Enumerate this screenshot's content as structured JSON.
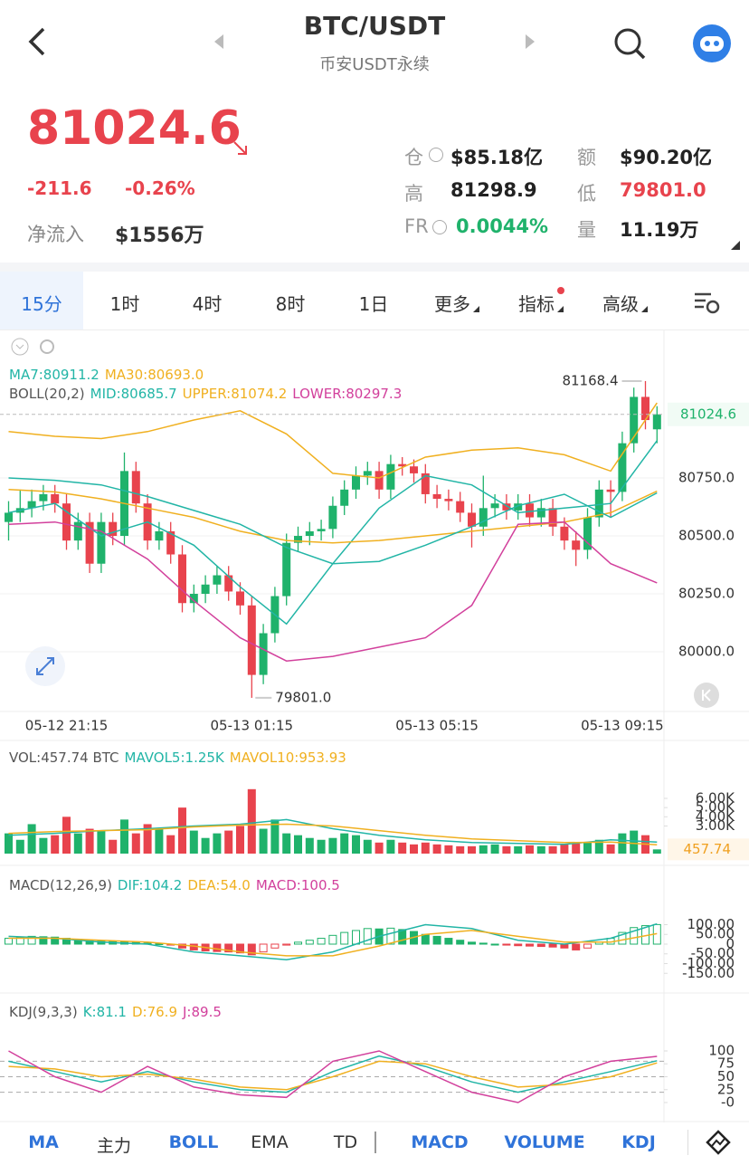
{
  "header": {
    "title": "BTC/USDT",
    "subtitle": "币安USDT永续"
  },
  "ticker": {
    "price": "81024.6",
    "change": "-211.6",
    "change_pct": "-0.26%",
    "net_inflow_label": "净流入",
    "net_inflow": "$1556万",
    "stats": [
      {
        "label": "仓",
        "value": "$85.18亿",
        "info": true,
        "color": "#222"
      },
      {
        "label": "额",
        "value": "$90.20亿",
        "info": false,
        "color": "#222"
      },
      {
        "label": "高",
        "value": "81298.9",
        "info": false,
        "color": "#222"
      },
      {
        "label": "低",
        "value": "79801.0",
        "info": false,
        "color": "#e8434d"
      },
      {
        "label": "FR",
        "value": "0.0044%",
        "info": true,
        "color": "#1fb26b"
      },
      {
        "label": "量",
        "value": "11.19万",
        "info": false,
        "color": "#222"
      }
    ]
  },
  "tabs": [
    {
      "label": "15分",
      "active": true
    },
    {
      "label": "1时",
      "active": false
    },
    {
      "label": "4时",
      "active": false
    },
    {
      "label": "8时",
      "active": false
    },
    {
      "label": "1日",
      "active": false
    },
    {
      "label": "更多",
      "active": false,
      "dropdown": true
    },
    {
      "label": "指标",
      "active": false,
      "dropdown": true,
      "badge": true
    },
    {
      "label": "高级",
      "active": false,
      "dropdown": true
    }
  ],
  "chart": {
    "up_color": "#1fb26b",
    "down_color": "#e8434d",
    "time_labels": {
      "x": [
        5,
        21,
        37,
        53
      ],
      "labels": [
        "05-12 21:15",
        "05-13 01:15",
        "05-13 05:15",
        "05-13 09:15"
      ]
    },
    "price": {
      "type": "candlestick",
      "ylim": [
        79746,
        81387
      ],
      "yticks": [
        {
          "value": 80000,
          "label": "80000.0"
        },
        {
          "value": 80250,
          "label": "80250.0"
        },
        {
          "value": 80500,
          "label": "80500.0"
        },
        {
          "value": 80750,
          "label": "80750.0"
        }
      ],
      "candles": [
        [
          80560,
          80650,
          80480,
          80600
        ],
        [
          80600,
          80700,
          80560,
          80620
        ],
        [
          80620,
          80700,
          80580,
          80650
        ],
        [
          80650,
          80720,
          80610,
          80680
        ],
        [
          80680,
          80720,
          80600,
          80640
        ],
        [
          80640,
          80680,
          80440,
          80480
        ],
        [
          80480,
          80600,
          80440,
          80560
        ],
        [
          80560,
          80600,
          80340,
          80380
        ],
        [
          80380,
          80600,
          80340,
          80560
        ],
        [
          80560,
          80600,
          80460,
          80500
        ],
        [
          80500,
          80860,
          80460,
          80780
        ],
        [
          80780,
          80820,
          80600,
          80640
        ],
        [
          80640,
          80680,
          80440,
          80480
        ],
        [
          80480,
          80560,
          80440,
          80520
        ],
        [
          80520,
          80560,
          80380,
          80420
        ],
        [
          80420,
          80460,
          80170,
          80210
        ],
        [
          80210,
          80290,
          80170,
          80250
        ],
        [
          80250,
          80330,
          80210,
          80290
        ],
        [
          80290,
          80370,
          80250,
          80330
        ],
        [
          80330,
          80370,
          80220,
          80260
        ],
        [
          80260,
          80300,
          80160,
          80200
        ],
        [
          80200,
          80240,
          79801,
          79900
        ],
        [
          79900,
          80120,
          79860,
          80080
        ],
        [
          80080,
          80280,
          80040,
          80240
        ],
        [
          80240,
          80510,
          80200,
          80470
        ],
        [
          80470,
          80540,
          80430,
          80500
        ],
        [
          80500,
          80560,
          80460,
          80520
        ],
        [
          80520,
          80570,
          80480,
          80530
        ],
        [
          80530,
          80670,
          80490,
          80630
        ],
        [
          80630,
          80740,
          80590,
          80700
        ],
        [
          80700,
          80800,
          80660,
          80760
        ],
        [
          80760,
          80820,
          80720,
          80780
        ],
        [
          80780,
          80820,
          80660,
          80700
        ],
        [
          80700,
          80850,
          80660,
          80810
        ],
        [
          80810,
          80840,
          80760,
          80800
        ],
        [
          80800,
          80830,
          80730,
          80770
        ],
        [
          80770,
          80810,
          80640,
          80680
        ],
        [
          80680,
          80720,
          80620,
          80660
        ],
        [
          80660,
          80700,
          80610,
          80650
        ],
        [
          80650,
          80690,
          80560,
          80600
        ],
        [
          80600,
          80640,
          80450,
          80540
        ],
        [
          80540,
          80760,
          80500,
          80620
        ],
        [
          80620,
          80680,
          80580,
          80640
        ],
        [
          80640,
          80680,
          80570,
          80610
        ],
        [
          80610,
          80680,
          80570,
          80640
        ],
        [
          80640,
          80680,
          80540,
          80580
        ],
        [
          80580,
          80660,
          80540,
          80620
        ],
        [
          80620,
          80660,
          80500,
          80540
        ],
        [
          80540,
          80580,
          80440,
          80480
        ],
        [
          80480,
          80520,
          80370,
          80440
        ],
        [
          80440,
          80620,
          80400,
          80580
        ],
        [
          80580,
          80740,
          80540,
          80700
        ],
        [
          80700,
          80740,
          80580,
          80690
        ],
        [
          80690,
          80950,
          80650,
          80900
        ],
        [
          80900,
          81140,
          80860,
          81100
        ],
        [
          81100,
          81168.4,
          80960,
          81000
        ],
        [
          80960,
          81060,
          80900,
          81024.6
        ]
      ],
      "line_x": [
        0,
        4,
        8,
        12,
        16,
        20,
        24,
        28,
        32,
        36,
        40,
        44,
        48,
        52,
        56
      ],
      "lines": [
        {
          "name": "MA7",
          "color": "#22b5a6",
          "values": [
            80600,
            80640,
            80500,
            80560,
            80460,
            80280,
            80120,
            80380,
            80620,
            80760,
            80720,
            80600,
            80620,
            80640,
            80911.2
          ]
        },
        {
          "name": "MA30",
          "color": "#f0b020",
          "values": [
            80700,
            80690,
            80660,
            80620,
            80580,
            80520,
            80480,
            80470,
            80480,
            80500,
            80520,
            80540,
            80560,
            80600,
            80693
          ]
        },
        {
          "name": "MID",
          "color": "#22b5a6",
          "values": [
            80750,
            80740,
            80720,
            80670,
            80610,
            80550,
            80450,
            80380,
            80390,
            80460,
            80540,
            80630,
            80680,
            80580,
            80685.7
          ]
        },
        {
          "name": "UPPER",
          "color": "#f0b020",
          "values": [
            80950,
            80930,
            80920,
            80950,
            81000,
            81040,
            80940,
            80770,
            80750,
            80840,
            80870,
            80880,
            80850,
            80780,
            81074.2
          ]
        },
        {
          "name": "LOWER",
          "color": "#d2409c",
          "values": [
            80550,
            80560,
            80520,
            80400,
            80220,
            80060,
            79960,
            79980,
            80020,
            80060,
            80200,
            80550,
            80560,
            80380,
            80297.3
          ]
        }
      ],
      "legend": [
        [
          {
            "text": "MA7:80911.2",
            "color": "#22b5a6"
          },
          {
            "text": "MA30:80693.0",
            "color": "#f0b020"
          }
        ],
        [
          {
            "text": "BOLL(20,2)",
            "color": "#555"
          },
          {
            "text": "MID:80685.7",
            "color": "#22b5a6"
          },
          {
            "text": "UPPER:81074.2",
            "color": "#f0b020"
          },
          {
            "text": "LOWER:80297.3",
            "color": "#d2409c"
          }
        ]
      ],
      "last_price": {
        "value": 81024.6,
        "label": "81024.6"
      },
      "max": {
        "x": 55,
        "value": 81168.4,
        "label": "81168.4"
      },
      "min": {
        "x": 21,
        "value": 79801,
        "label": "79801.0"
      }
    },
    "volume": {
      "type": "bar",
      "ylim": [
        0,
        10620
      ],
      "yticks": [
        {
          "value": 3000,
          "label": "3.00K"
        },
        {
          "value": 4000,
          "label": "4.00K"
        },
        {
          "value": 5000,
          "label": "5.00K"
        },
        {
          "value": 6000,
          "label": "6.00K"
        }
      ],
      "values": [
        2200,
        1500,
        3200,
        1700,
        2000,
        4000,
        2200,
        2700,
        2500,
        1500,
        3700,
        2200,
        3200,
        2700,
        2000,
        5000,
        2500,
        1700,
        2200,
        2500,
        3000,
        7000,
        2700,
        3700,
        2200,
        2000,
        1700,
        1500,
        1700,
        2200,
        2000,
        1500,
        1200,
        1500,
        1200,
        1000,
        1200,
        1000,
        900,
        800,
        800,
        900,
        1000,
        800,
        800,
        900,
        800,
        800,
        1000,
        1100,
        1200,
        1500,
        1000,
        2200,
        2500,
        2000,
        457.74
      ],
      "line_x": [
        0,
        4,
        8,
        12,
        16,
        20,
        24,
        28,
        32,
        36,
        40,
        44,
        48,
        52,
        56
      ],
      "lines": [
        {
          "name": "MAVOL5",
          "color": "#22b5a6",
          "values": [
            2000,
            2200,
            2500,
            2700,
            3000,
            3200,
            3700,
            2700,
            2000,
            1500,
            1200,
            1100,
            1000,
            1500,
            1250
          ]
        },
        {
          "name": "MAVOL10",
          "color": "#f0b020",
          "values": [
            2200,
            2400,
            2500,
            2600,
            2900,
            3100,
            3200,
            3000,
            2500,
            2000,
            1600,
            1400,
            1200,
            1250,
            953.93
          ]
        }
      ],
      "legend": [
        {
          "text": "VOL:457.74 BTC",
          "color": "#555"
        },
        {
          "text": "MAVOL5:1.25K",
          "color": "#22b5a6"
        },
        {
          "text": "MAVOL10:953.93",
          "color": "#f0b020"
        }
      ],
      "last": {
        "value": 457.74,
        "label": "457.74"
      }
    },
    "macd": {
      "type": "histogram",
      "ylim": [
        -218.6,
        246.5
      ],
      "yticks": [
        {
          "value": 100,
          "label": "100.00"
        },
        {
          "value": 50,
          "label": "50.00"
        },
        0,
        {
          "value": -50,
          "label": "-50.00"
        },
        {
          "value": -100,
          "label": "-100.00"
        },
        {
          "value": -150,
          "label": "-150.00"
        }
      ],
      "values": [
        30,
        35,
        40,
        38,
        36,
        30,
        25,
        20,
        18,
        15,
        12,
        10,
        5,
        2,
        -5,
        -20,
        -30,
        -35,
        -38,
        -40,
        -45,
        -55,
        -40,
        -20,
        -5,
        10,
        20,
        30,
        45,
        60,
        70,
        80,
        78,
        82,
        75,
        65,
        50,
        40,
        30,
        20,
        10,
        5,
        0,
        -5,
        -8,
        -10,
        -12,
        -15,
        -20,
        -30,
        -20,
        10,
        30,
        60,
        85,
        95,
        100.5
      ],
      "line_x": [
        0,
        4,
        8,
        12,
        16,
        20,
        24,
        28,
        32,
        36,
        40,
        44,
        48,
        52,
        56
      ],
      "lines": [
        {
          "name": "DIF",
          "color": "#22b5a6",
          "values": [
            40,
            30,
            10,
            0,
            -40,
            -60,
            -80,
            -40,
            40,
            100,
            80,
            20,
            0,
            30,
            104.2
          ]
        },
        {
          "name": "DEA",
          "color": "#f0b020",
          "values": [
            30,
            30,
            20,
            10,
            -10,
            -40,
            -60,
            -60,
            -10,
            50,
            70,
            40,
            10,
            10,
            54
          ]
        }
      ],
      "legend": [
        {
          "text": "MACD(12,26,9)",
          "color": "#555"
        },
        {
          "text": "DIF:104.2",
          "color": "#22b5a6"
        },
        {
          "text": "DEA:54.0",
          "color": "#f0b020"
        },
        {
          "text": "MACD:100.5",
          "color": "#d2409c"
        }
      ]
    },
    "kdj": {
      "type": "line",
      "ylim": [
        -29.8,
        136.8
      ],
      "yticks": [
        100,
        75,
        50,
        25,
        {
          "value": 0,
          "label": "-0"
        }
      ],
      "guide_levels": [
        80,
        50,
        20
      ],
      "line_x": [
        0,
        4,
        8,
        12,
        16,
        20,
        24,
        28,
        32,
        36,
        40,
        44,
        48,
        52,
        56
      ],
      "lines": [
        {
          "name": "K",
          "color": "#22b5a6",
          "values": [
            80,
            60,
            40,
            60,
            40,
            25,
            20,
            60,
            90,
            70,
            40,
            20,
            40,
            60,
            81.1
          ]
        },
        {
          "name": "D",
          "color": "#f0b020",
          "values": [
            70,
            65,
            50,
            55,
            45,
            30,
            25,
            50,
            80,
            75,
            50,
            30,
            35,
            50,
            76.9
          ]
        },
        {
          "name": "J",
          "color": "#d2409c",
          "values": [
            100,
            50,
            20,
            70,
            30,
            15,
            10,
            80,
            100,
            60,
            20,
            0,
            50,
            80,
            89.5
          ]
        }
      ],
      "legend": [
        {
          "text": "KDJ(9,3,3)",
          "color": "#555"
        },
        {
          "text": "K:81.1",
          "color": "#22b5a6"
        },
        {
          "text": "D:76.9",
          "color": "#f0b020"
        },
        {
          "text": "J:89.5",
          "color": "#d2409c"
        }
      ]
    }
  },
  "bottom_tabs": [
    {
      "label": "MA",
      "active": true
    },
    {
      "label": "主力",
      "active": false
    },
    {
      "label": "BOLL",
      "active": true
    },
    {
      "label": "EMA",
      "active": false
    },
    {
      "label": "TD",
      "active": false
    },
    {
      "label": "MACD",
      "active": true
    },
    {
      "label": "VOLUME",
      "active": true
    },
    {
      "label": "KDJ",
      "active": true
    }
  ]
}
